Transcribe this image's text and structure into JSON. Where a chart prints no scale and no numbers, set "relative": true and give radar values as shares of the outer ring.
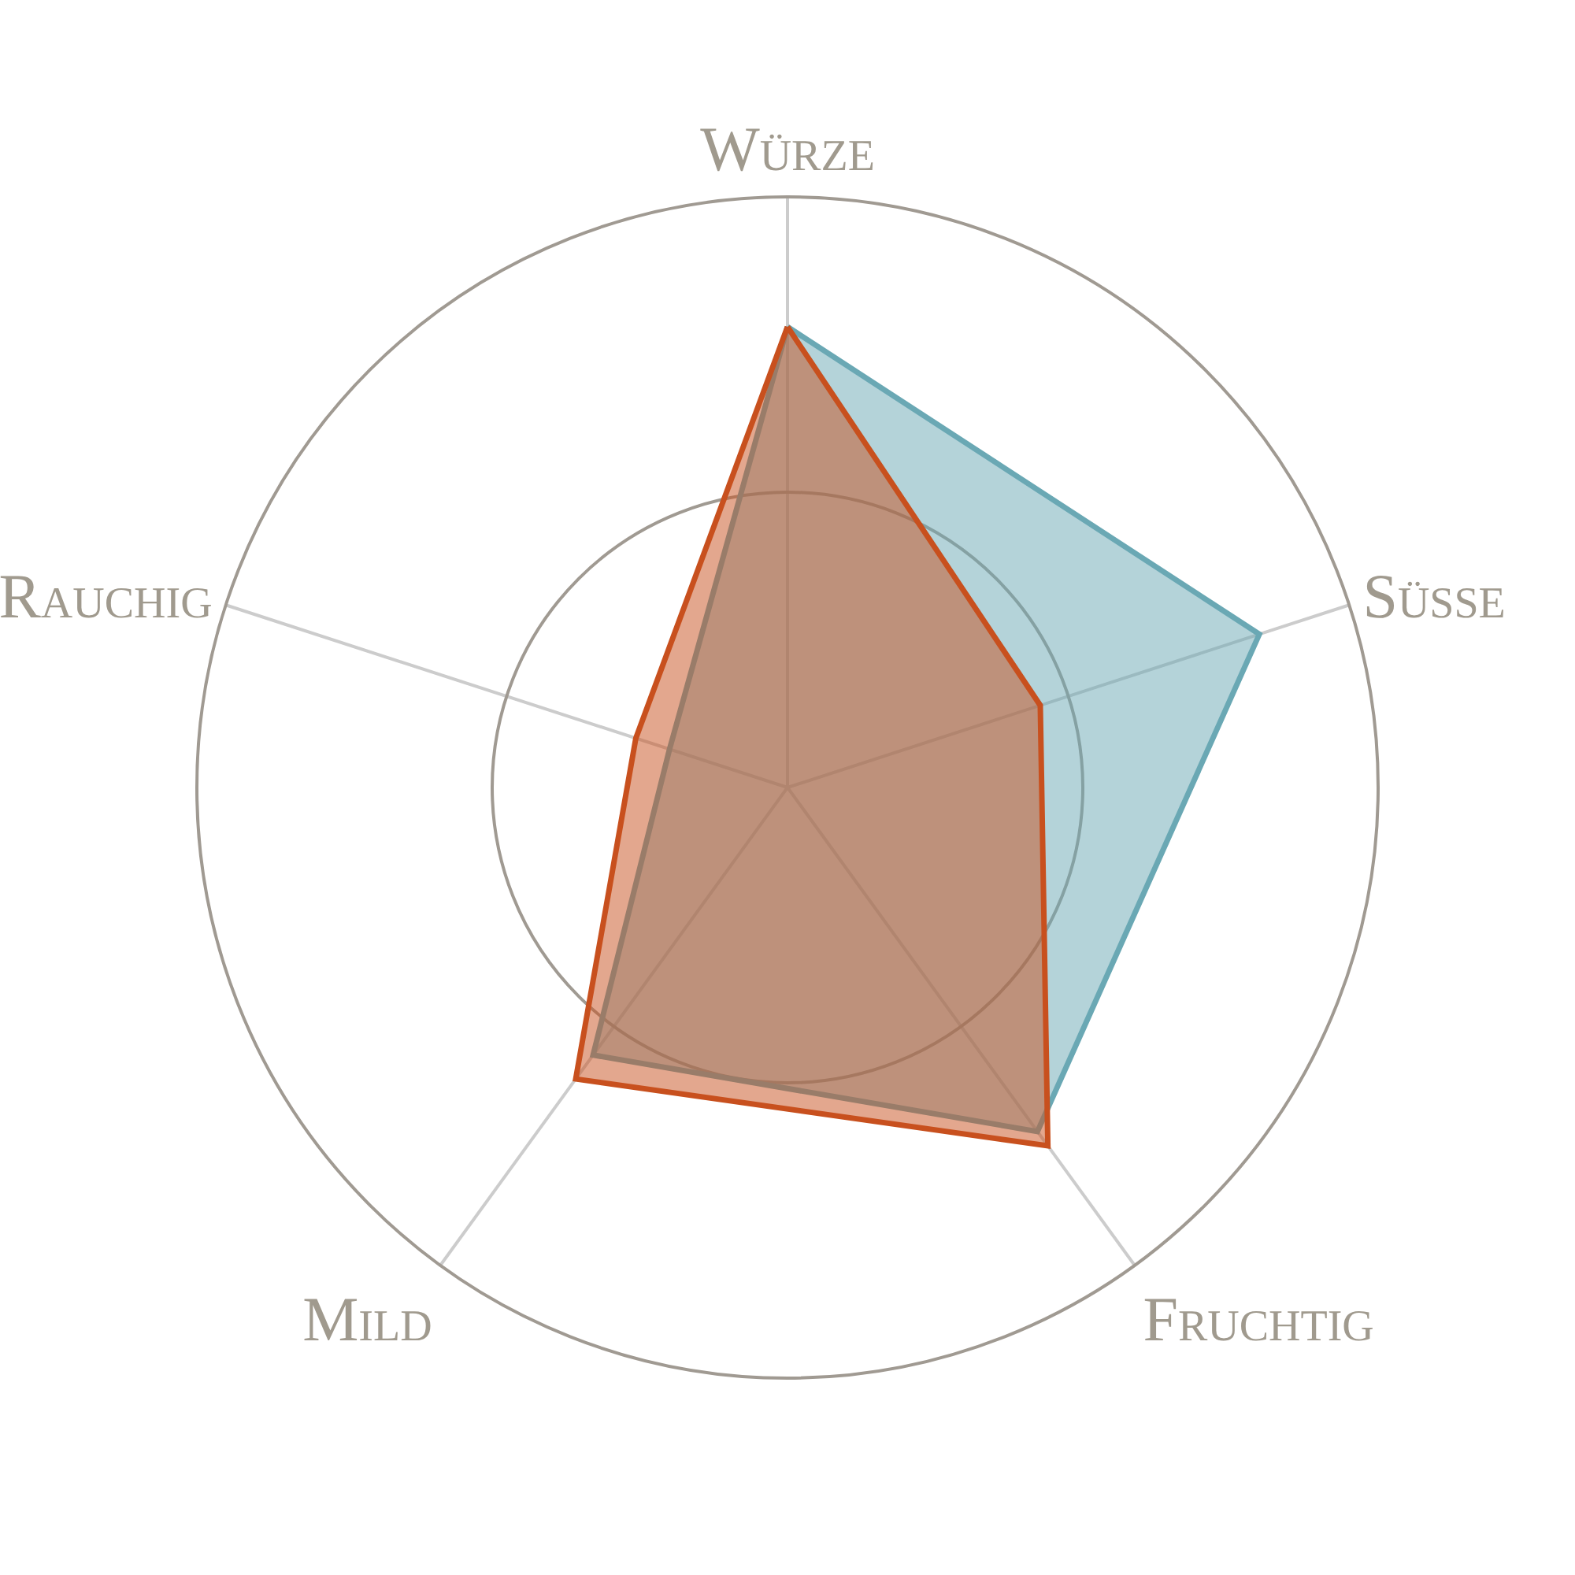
{
  "chart_data": {
    "type": "radar",
    "relative": true,
    "grid": true,
    "categories": [
      "Würze",
      "Süße",
      "Fruchtig",
      "Mild",
      "Rauchig"
    ],
    "series": [
      {
        "color": "#6aa8b4",
        "values": [
          0.78,
          0.84,
          0.72,
          0.56,
          0.21
        ]
      },
      {
        "color": "#c8501e",
        "values": [
          0.78,
          0.45,
          0.75,
          0.61,
          0.27
        ]
      }
    ]
  }
}
